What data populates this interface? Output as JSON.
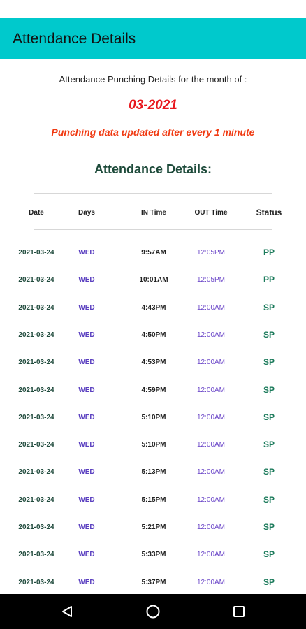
{
  "app_bar": {
    "title": "Attendance Details"
  },
  "header": {
    "subtitle": "Attendance Punching Details for the month of :",
    "month": "03-2021",
    "note": "Punching data updated after every 1 minute",
    "section_title": "Attendance Details:"
  },
  "table": {
    "columns": [
      "Date",
      "Days",
      "IN Time",
      "OUT Time",
      "Status"
    ],
    "rows": [
      {
        "date": "2021-03-24",
        "day": "WED",
        "in": "9:57AM",
        "out": "12:05PM",
        "status": "PP"
      },
      {
        "date": "2021-03-24",
        "day": "WED",
        "in": "10:01AM",
        "out": "12:05PM",
        "status": "PP"
      },
      {
        "date": "2021-03-24",
        "day": "WED",
        "in": "4:43PM",
        "out": "12:00AM",
        "status": "SP"
      },
      {
        "date": "2021-03-24",
        "day": "WED",
        "in": "4:50PM",
        "out": "12:00AM",
        "status": "SP"
      },
      {
        "date": "2021-03-24",
        "day": "WED",
        "in": "4:53PM",
        "out": "12:00AM",
        "status": "SP"
      },
      {
        "date": "2021-03-24",
        "day": "WED",
        "in": "4:59PM",
        "out": "12:00AM",
        "status": "SP"
      },
      {
        "date": "2021-03-24",
        "day": "WED",
        "in": "5:10PM",
        "out": "12:00AM",
        "status": "SP"
      },
      {
        "date": "2021-03-24",
        "day": "WED",
        "in": "5:10PM",
        "out": "12:00AM",
        "status": "SP"
      },
      {
        "date": "2021-03-24",
        "day": "WED",
        "in": "5:13PM",
        "out": "12:00AM",
        "status": "SP"
      },
      {
        "date": "2021-03-24",
        "day": "WED",
        "in": "5:15PM",
        "out": "12:00AM",
        "status": "SP"
      },
      {
        "date": "2021-03-24",
        "day": "WED",
        "in": "5:21PM",
        "out": "12:00AM",
        "status": "SP"
      },
      {
        "date": "2021-03-24",
        "day": "WED",
        "in": "5:33PM",
        "out": "12:00AM",
        "status": "SP"
      },
      {
        "date": "2021-03-24",
        "day": "WED",
        "in": "5:37PM",
        "out": "12:00AM",
        "status": "SP"
      }
    ]
  },
  "nav": {
    "back_icon": "back-triangle-icon",
    "home_icon": "home-circle-icon",
    "recents_icon": "recents-square-icon"
  },
  "colors": {
    "app_bar": "#00c9cc",
    "month": "#e8181e",
    "note": "#f03a12",
    "status": "#1a7a5a"
  }
}
